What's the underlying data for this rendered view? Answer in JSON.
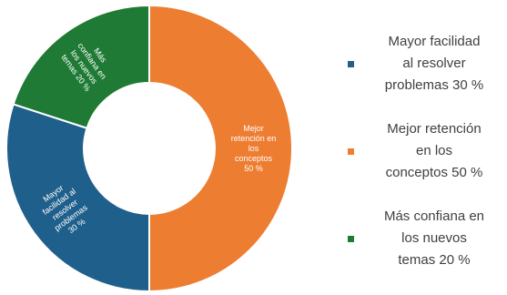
{
  "chart_data": {
    "type": "pie",
    "variant": "donut",
    "title": "",
    "slices": [
      {
        "label_lines": [
          "Mejor",
          "retención en",
          "los",
          "conceptos",
          "50 %"
        ],
        "legend_text": "Mejor retención\nen los\nconceptos 50 %",
        "value": 50,
        "color": "#ed7d31"
      },
      {
        "label_lines": [
          "Mayor",
          "facilidad al",
          "resolver",
          "problemas",
          "30 %"
        ],
        "legend_text": "Mayor facilidad\nal resolver\nproblemas 30 %",
        "value": 30,
        "color": "#1f5f8b"
      },
      {
        "label_lines": [
          "Más",
          "confiana en",
          "los nuevos",
          "temas 20 %"
        ],
        "legend_text": "Más confiana en\nlos nuevos\ntemas 20 %",
        "value": 20,
        "color": "#1e7a34"
      }
    ],
    "legend_order": [
      1,
      0,
      2
    ],
    "legend_position": "right"
  }
}
